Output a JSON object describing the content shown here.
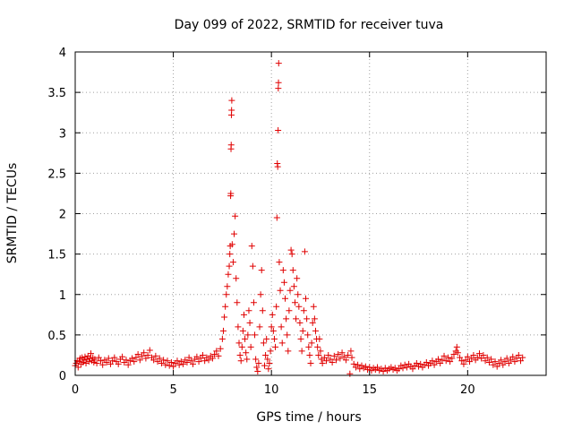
{
  "chart_data": {
    "type": "scatter",
    "title": "Day 099 of 2022, SRMTID for receiver tuva",
    "xlabel": "GPS time / hours",
    "ylabel": "SRMTID / TECUs",
    "xlim": [
      0,
      24
    ],
    "ylim": [
      0,
      4
    ],
    "xticks": [
      0,
      5,
      10,
      15,
      20
    ],
    "yticks": [
      0,
      0.5,
      1,
      1.5,
      2,
      2.5,
      3,
      3.5,
      4
    ],
    "xtick_labels": [
      "0",
      "5",
      "10",
      "15",
      "20"
    ],
    "ytick_labels": [
      "0",
      "0.5",
      "1",
      "1.5",
      "2",
      "2.5",
      "3",
      "3.5",
      "4"
    ],
    "grid": true,
    "marker": "+",
    "color": "#e00000",
    "series": [
      {
        "name": "SRMTID",
        "points": [
          [
            0.0,
            0.12
          ],
          [
            0.05,
            0.15
          ],
          [
            0.1,
            0.18
          ],
          [
            0.15,
            0.1
          ],
          [
            0.2,
            0.17
          ],
          [
            0.25,
            0.21
          ],
          [
            0.3,
            0.14
          ],
          [
            0.35,
            0.22
          ],
          [
            0.4,
            0.16
          ],
          [
            0.45,
            0.19
          ],
          [
            0.5,
            0.23
          ],
          [
            0.55,
            0.15
          ],
          [
            0.6,
            0.2
          ],
          [
            0.65,
            0.24
          ],
          [
            0.7,
            0.17
          ],
          [
            0.75,
            0.21
          ],
          [
            0.8,
            0.27
          ],
          [
            0.85,
            0.18
          ],
          [
            0.9,
            0.22
          ],
          [
            0.95,
            0.16
          ],
          [
            1.0,
            0.2
          ],
          [
            1.1,
            0.15
          ],
          [
            1.2,
            0.22
          ],
          [
            1.3,
            0.18
          ],
          [
            1.4,
            0.13
          ],
          [
            1.5,
            0.19
          ],
          [
            1.6,
            0.16
          ],
          [
            1.7,
            0.21
          ],
          [
            1.8,
            0.14
          ],
          [
            1.9,
            0.18
          ],
          [
            2.0,
            0.22
          ],
          [
            2.1,
            0.17
          ],
          [
            2.2,
            0.14
          ],
          [
            2.3,
            0.2
          ],
          [
            2.4,
            0.23
          ],
          [
            2.5,
            0.16
          ],
          [
            2.6,
            0.19
          ],
          [
            2.7,
            0.13
          ],
          [
            2.8,
            0.18
          ],
          [
            2.9,
            0.21
          ],
          [
            3.0,
            0.17
          ],
          [
            3.1,
            0.22
          ],
          [
            3.2,
            0.26
          ],
          [
            3.3,
            0.19
          ],
          [
            3.4,
            0.24
          ],
          [
            3.5,
            0.28
          ],
          [
            3.6,
            0.21
          ],
          [
            3.7,
            0.25
          ],
          [
            3.8,
            0.31
          ],
          [
            3.9,
            0.22
          ],
          [
            4.0,
            0.19
          ],
          [
            4.1,
            0.24
          ],
          [
            4.2,
            0.17
          ],
          [
            4.3,
            0.21
          ],
          [
            4.4,
            0.15
          ],
          [
            4.5,
            0.19
          ],
          [
            4.6,
            0.13
          ],
          [
            4.7,
            0.18
          ],
          [
            4.8,
            0.12
          ],
          [
            4.9,
            0.16
          ],
          [
            5.0,
            0.11
          ],
          [
            5.1,
            0.15
          ],
          [
            5.2,
            0.18
          ],
          [
            5.3,
            0.13
          ],
          [
            5.4,
            0.17
          ],
          [
            5.5,
            0.14
          ],
          [
            5.6,
            0.19
          ],
          [
            5.7,
            0.16
          ],
          [
            5.8,
            0.22
          ],
          [
            5.9,
            0.18
          ],
          [
            6.0,
            0.14
          ],
          [
            6.1,
            0.2
          ],
          [
            6.2,
            0.23
          ],
          [
            6.3,
            0.17
          ],
          [
            6.4,
            0.21
          ],
          [
            6.5,
            0.25
          ],
          [
            6.6,
            0.18
          ],
          [
            6.7,
            0.22
          ],
          [
            6.8,
            0.19
          ],
          [
            6.9,
            0.24
          ],
          [
            7.0,
            0.21
          ],
          [
            7.1,
            0.26
          ],
          [
            7.2,
            0.3
          ],
          [
            7.3,
            0.24
          ],
          [
            7.4,
            0.33
          ],
          [
            7.5,
            0.45
          ],
          [
            7.55,
            0.55
          ],
          [
            7.6,
            0.72
          ],
          [
            7.65,
            0.85
          ],
          [
            7.7,
            1.0
          ],
          [
            7.75,
            1.1
          ],
          [
            7.8,
            1.25
          ],
          [
            7.85,
            1.35
          ],
          [
            7.88,
            1.5
          ],
          [
            7.9,
            1.6
          ],
          [
            7.92,
            2.22
          ],
          [
            7.93,
            2.25
          ],
          [
            7.94,
            2.8
          ],
          [
            7.95,
            2.85
          ],
          [
            7.96,
            3.22
          ],
          [
            7.97,
            3.28
          ],
          [
            7.98,
            3.4
          ],
          [
            8.0,
            1.62
          ],
          [
            8.05,
            1.4
          ],
          [
            8.1,
            1.75
          ],
          [
            8.15,
            1.97
          ],
          [
            8.2,
            1.2
          ],
          [
            8.25,
            0.9
          ],
          [
            8.3,
            0.6
          ],
          [
            8.35,
            0.4
          ],
          [
            8.4,
            0.25
          ],
          [
            8.45,
            0.18
          ],
          [
            8.5,
            0.35
          ],
          [
            8.55,
            0.55
          ],
          [
            8.6,
            0.75
          ],
          [
            8.65,
            0.45
          ],
          [
            8.7,
            0.28
          ],
          [
            8.75,
            0.2
          ],
          [
            8.8,
            0.5
          ],
          [
            8.85,
            0.8
          ],
          [
            8.9,
            0.65
          ],
          [
            8.95,
            0.35
          ],
          [
            9.0,
            1.6
          ],
          [
            9.05,
            1.35
          ],
          [
            9.1,
            0.9
          ],
          [
            9.15,
            0.5
          ],
          [
            9.2,
            0.2
          ],
          [
            9.25,
            0.1
          ],
          [
            9.3,
            0.05
          ],
          [
            9.35,
            0.15
          ],
          [
            9.4,
            0.6
          ],
          [
            9.45,
            1.0
          ],
          [
            9.5,
            1.3
          ],
          [
            9.55,
            0.8
          ],
          [
            9.6,
            0.4
          ],
          [
            9.65,
            0.12
          ],
          [
            9.7,
            0.25
          ],
          [
            9.75,
            0.45
          ],
          [
            9.8,
            0.2
          ],
          [
            9.85,
            0.08
          ],
          [
            9.9,
            0.15
          ],
          [
            9.95,
            0.3
          ],
          [
            10.0,
            0.6
          ],
          [
            10.05,
            0.75
          ],
          [
            10.1,
            0.55
          ],
          [
            10.15,
            0.45
          ],
          [
            10.2,
            0.35
          ],
          [
            10.25,
            0.85
          ],
          [
            10.28,
            1.95
          ],
          [
            10.3,
            2.62
          ],
          [
            10.32,
            2.58
          ],
          [
            10.34,
            3.03
          ],
          [
            10.35,
            3.55
          ],
          [
            10.36,
            3.62
          ],
          [
            10.37,
            3.86
          ],
          [
            10.4,
            1.4
          ],
          [
            10.45,
            1.05
          ],
          [
            10.5,
            0.6
          ],
          [
            10.55,
            0.4
          ],
          [
            10.6,
            1.3
          ],
          [
            10.65,
            1.15
          ],
          [
            10.7,
            0.95
          ],
          [
            10.75,
            0.7
          ],
          [
            10.8,
            0.5
          ],
          [
            10.85,
            0.3
          ],
          [
            10.9,
            0.8
          ],
          [
            10.95,
            1.05
          ],
          [
            11.0,
            1.55
          ],
          [
            11.05,
            1.5
          ],
          [
            11.1,
            1.3
          ],
          [
            11.15,
            1.1
          ],
          [
            11.2,
            0.9
          ],
          [
            11.25,
            0.7
          ],
          [
            11.3,
            1.2
          ],
          [
            11.35,
            1.0
          ],
          [
            11.4,
            0.85
          ],
          [
            11.45,
            0.65
          ],
          [
            11.5,
            0.45
          ],
          [
            11.55,
            0.3
          ],
          [
            11.6,
            0.55
          ],
          [
            11.65,
            0.8
          ],
          [
            11.7,
            1.53
          ],
          [
            11.75,
            0.95
          ],
          [
            11.8,
            0.7
          ],
          [
            11.85,
            0.5
          ],
          [
            11.9,
            0.35
          ],
          [
            11.95,
            0.25
          ],
          [
            12.0,
            0.15
          ],
          [
            12.05,
            0.4
          ],
          [
            12.1,
            0.65
          ],
          [
            12.15,
            0.85
          ],
          [
            12.2,
            0.7
          ],
          [
            12.25,
            0.55
          ],
          [
            12.3,
            0.45
          ],
          [
            12.35,
            0.35
          ],
          [
            12.4,
            0.25
          ],
          [
            12.45,
            0.45
          ],
          [
            12.5,
            0.3
          ],
          [
            12.55,
            0.2
          ],
          [
            12.6,
            0.15
          ],
          [
            12.7,
            0.22
          ],
          [
            12.8,
            0.18
          ],
          [
            12.9,
            0.25
          ],
          [
            13.0,
            0.2
          ],
          [
            13.1,
            0.16
          ],
          [
            13.2,
            0.24
          ],
          [
            13.3,
            0.19
          ],
          [
            13.4,
            0.26
          ],
          [
            13.5,
            0.21
          ],
          [
            13.6,
            0.28
          ],
          [
            13.7,
            0.23
          ],
          [
            13.8,
            0.19
          ],
          [
            13.9,
            0.25
          ],
          [
            14.0,
            0.02
          ],
          [
            14.05,
            0.3
          ],
          [
            14.1,
            0.22
          ],
          [
            14.2,
            0.14
          ],
          [
            14.3,
            0.1
          ],
          [
            14.4,
            0.13
          ],
          [
            14.5,
            0.08
          ],
          [
            14.6,
            0.12
          ],
          [
            14.7,
            0.09
          ],
          [
            14.8,
            0.11
          ],
          [
            14.9,
            0.07
          ],
          [
            15.0,
            0.1
          ],
          [
            15.1,
            0.06
          ],
          [
            15.2,
            0.09
          ],
          [
            15.3,
            0.07
          ],
          [
            15.4,
            0.1
          ],
          [
            15.5,
            0.06
          ],
          [
            15.6,
            0.08
          ],
          [
            15.7,
            0.05
          ],
          [
            15.8,
            0.09
          ],
          [
            15.9,
            0.06
          ],
          [
            16.0,
            0.08
          ],
          [
            16.1,
            0.1
          ],
          [
            16.2,
            0.07
          ],
          [
            16.3,
            0.09
          ],
          [
            16.4,
            0.06
          ],
          [
            16.5,
            0.08
          ],
          [
            16.6,
            0.12
          ],
          [
            16.7,
            0.09
          ],
          [
            16.8,
            0.13
          ],
          [
            16.9,
            0.1
          ],
          [
            17.0,
            0.14
          ],
          [
            17.1,
            0.11
          ],
          [
            17.2,
            0.08
          ],
          [
            17.3,
            0.12
          ],
          [
            17.4,
            0.15
          ],
          [
            17.5,
            0.11
          ],
          [
            17.6,
            0.14
          ],
          [
            17.7,
            0.1
          ],
          [
            17.8,
            0.13
          ],
          [
            17.9,
            0.16
          ],
          [
            18.0,
            0.12
          ],
          [
            18.1,
            0.15
          ],
          [
            18.2,
            0.18
          ],
          [
            18.3,
            0.13
          ],
          [
            18.4,
            0.17
          ],
          [
            18.5,
            0.2
          ],
          [
            18.6,
            0.15
          ],
          [
            18.7,
            0.19
          ],
          [
            18.8,
            0.24
          ],
          [
            18.9,
            0.18
          ],
          [
            19.0,
            0.22
          ],
          [
            19.1,
            0.17
          ],
          [
            19.2,
            0.21
          ],
          [
            19.3,
            0.26
          ],
          [
            19.4,
            0.3
          ],
          [
            19.45,
            0.35
          ],
          [
            19.5,
            0.28
          ],
          [
            19.6,
            0.22
          ],
          [
            19.7,
            0.18
          ],
          [
            19.8,
            0.14
          ],
          [
            19.9,
            0.19
          ],
          [
            20.0,
            0.23
          ],
          [
            20.1,
            0.17
          ],
          [
            20.2,
            0.21
          ],
          [
            20.3,
            0.25
          ],
          [
            20.4,
            0.19
          ],
          [
            20.5,
            0.22
          ],
          [
            20.6,
            0.27
          ],
          [
            20.7,
            0.21
          ],
          [
            20.8,
            0.25
          ],
          [
            20.9,
            0.18
          ],
          [
            21.0,
            0.22
          ],
          [
            21.1,
            0.16
          ],
          [
            21.2,
            0.2
          ],
          [
            21.3,
            0.13
          ],
          [
            21.4,
            0.17
          ],
          [
            21.5,
            0.11
          ],
          [
            21.6,
            0.15
          ],
          [
            21.7,
            0.19
          ],
          [
            21.8,
            0.13
          ],
          [
            21.9,
            0.17
          ],
          [
            22.0,
            0.21
          ],
          [
            22.1,
            0.15
          ],
          [
            22.2,
            0.19
          ],
          [
            22.3,
            0.23
          ],
          [
            22.4,
            0.17
          ],
          [
            22.5,
            0.21
          ],
          [
            22.6,
            0.25
          ],
          [
            22.7,
            0.18
          ],
          [
            22.8,
            0.22
          ]
        ]
      }
    ]
  }
}
